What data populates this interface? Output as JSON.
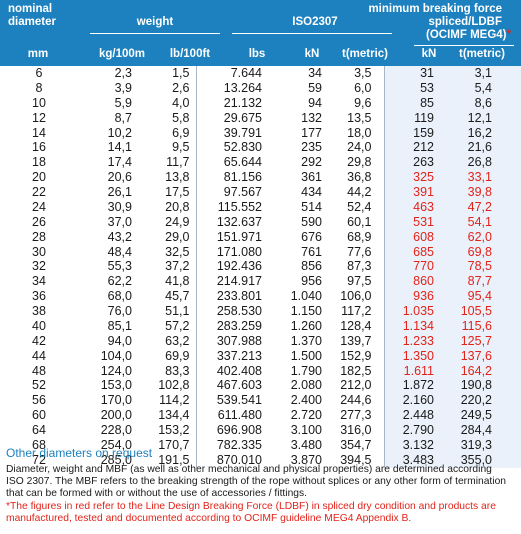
{
  "header": {
    "nominal_diameter": "nominal\ndiameter",
    "weight": "weight",
    "iso": "ISO2307",
    "mbf": "minimum breaking force",
    "spliced": "spliced/LDBF",
    "ocimf": "(OCIMF MEG4)",
    "star": "*",
    "units": [
      "mm",
      "kg/100m",
      "lb/100ft",
      "lbs",
      "kN",
      "t(metric)",
      "kN",
      "t(metric)"
    ]
  },
  "rows": [
    [
      "6",
      "2,3",
      "1,5",
      "7.644",
      "34",
      "3,5",
      "31",
      "3,1"
    ],
    [
      "8",
      "3,9",
      "2,6",
      "13.264",
      "59",
      "6,0",
      "53",
      "5,4"
    ],
    [
      "10",
      "5,9",
      "4,0",
      "21.132",
      "94",
      "9,6",
      "85",
      "8,6"
    ],
    [
      "12",
      "8,7",
      "5,8",
      "29.675",
      "132",
      "13,5",
      "119",
      "12,1"
    ],
    [
      "14",
      "10,2",
      "6,9",
      "39.791",
      "177",
      "18,0",
      "159",
      "16,2"
    ],
    [
      "16",
      "14,1",
      "9,5",
      "52.830",
      "235",
      "24,0",
      "212",
      "21,6"
    ],
    [
      "18",
      "17,4",
      "11,7",
      "65.644",
      "292",
      "29,8",
      "263",
      "26,8"
    ],
    [
      "20",
      "20,6",
      "13,8",
      "81.156",
      "361",
      "36,8",
      "325",
      "33,1"
    ],
    [
      "22",
      "26,1",
      "17,5",
      "97.567",
      "434",
      "44,2",
      "391",
      "39,8"
    ],
    [
      "24",
      "30,9",
      "20,8",
      "115.552",
      "514",
      "52,4",
      "463",
      "47,2"
    ],
    [
      "26",
      "37,0",
      "24,9",
      "132.637",
      "590",
      "60,1",
      "531",
      "54,1"
    ],
    [
      "28",
      "43,2",
      "29,0",
      "151.971",
      "676",
      "68,9",
      "608",
      "62,0"
    ],
    [
      "30",
      "48,4",
      "32,5",
      "171.080",
      "761",
      "77,6",
      "685",
      "69,8"
    ],
    [
      "32",
      "55,3",
      "37,2",
      "192.436",
      "856",
      "87,3",
      "770",
      "78,5"
    ],
    [
      "34",
      "62,2",
      "41,8",
      "214.917",
      "956",
      "97,5",
      "860",
      "87,7"
    ],
    [
      "36",
      "68,0",
      "45,7",
      "233.801",
      "1.040",
      "106,0",
      "936",
      "95,4"
    ],
    [
      "38",
      "76,0",
      "51,1",
      "258.530",
      "1.150",
      "117,2",
      "1.035",
      "105,5"
    ],
    [
      "40",
      "85,1",
      "57,2",
      "283.259",
      "1.260",
      "128,4",
      "1.134",
      "115,6"
    ],
    [
      "42",
      "94,0",
      "63,2",
      "307.988",
      "1.370",
      "139,7",
      "1.233",
      "125,7"
    ],
    [
      "44",
      "104,0",
      "69,9",
      "337.213",
      "1.500",
      "152,9",
      "1.350",
      "137,6"
    ],
    [
      "48",
      "124,0",
      "83,3",
      "402.408",
      "1.790",
      "182,5",
      "1.611",
      "164,2"
    ],
    [
      "52",
      "153,0",
      "102,8",
      "467.603",
      "2.080",
      "212,0",
      "1.872",
      "190,8"
    ],
    [
      "56",
      "170,0",
      "114,2",
      "539.541",
      "2.400",
      "244,6",
      "2.160",
      "220,2"
    ],
    [
      "60",
      "200,0",
      "134,4",
      "611.480",
      "2.720",
      "277,3",
      "2.448",
      "249,5"
    ],
    [
      "64",
      "228,0",
      "153,2",
      "696.908",
      "3.100",
      "316,0",
      "2.790",
      "284,4"
    ],
    [
      "68",
      "254,0",
      "170,7",
      "782.335",
      "3.480",
      "354,7",
      "3.132",
      "319,3"
    ],
    [
      "72",
      "285,0",
      "191,5",
      "870.010",
      "3.870",
      "394,5",
      "3.483",
      "355,0"
    ]
  ],
  "red_rows": [
    7,
    8,
    9,
    10,
    11,
    12,
    13,
    14,
    15,
    16,
    17,
    18,
    19,
    20
  ],
  "other_diameters": "Other diameters on request",
  "note": "Diameter, weight and MBF (as well as other mechanical and physical properties) are determined according ISO 2307. The MBF refers to the breaking strength of the rope without splices or any other form of termination that can be formed with or without the use of accessories / fittings.",
  "note_red": "*The figures in red refer to the Line Design Breaking Force (LDBF) in spliced dry condition and products are manufactured, tested and documented according to OCIMF guideline MEG4 Appendix B.",
  "colors": {
    "header_bg": "#1d81bf",
    "spliced_bg": "#eaf1fa",
    "red": "#e2231a",
    "link_blue": "#1d81bf"
  }
}
